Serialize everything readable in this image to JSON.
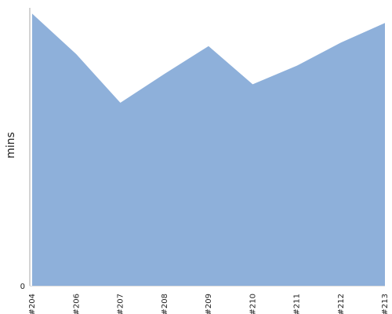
{
  "chart_data": {
    "type": "area",
    "title": "",
    "xlabel": "",
    "ylabel": "mins",
    "categories": [
      "#204",
      "#206",
      "#207",
      "#208",
      "#209",
      "#210",
      "#211",
      "#212",
      "#213"
    ],
    "series": [
      {
        "values": [
          23.5,
          20.0,
          15.8,
          18.3,
          20.7,
          17.4,
          19.0,
          21.0,
          22.7
        ]
      }
    ],
    "y_ticks": [
      "0"
    ],
    "ylim": [
      0,
      24
    ],
    "grid": false,
    "legend": "none",
    "colors": {
      "area": "#8eb0da",
      "axis": "#aaaaaa",
      "text": "#222222"
    }
  }
}
